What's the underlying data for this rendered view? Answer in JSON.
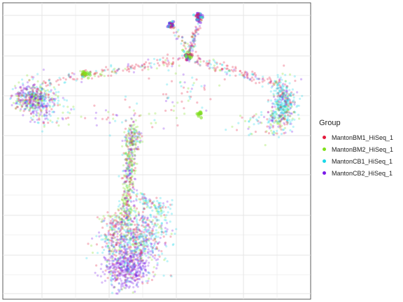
{
  "chart_data": {
    "type": "scatter",
    "title": "",
    "xlabel": "",
    "ylabel": "",
    "grid": true,
    "legend_position": "right",
    "legend": {
      "title": "Group",
      "entries": [
        {
          "name": "MantonBM1_HiSeq_1",
          "color": "#e31a3c"
        },
        {
          "name": "MantonBM2_HiSeq_1",
          "color": "#7fe01a"
        },
        {
          "name": "MantonCB1_HiSeq_1",
          "color": "#1ad8e8"
        },
        {
          "name": "MantonCB2_HiSeq_1",
          "color": "#7a1ae8"
        }
      ]
    },
    "series": [
      {
        "name": "MantonBM1_HiSeq_1",
        "color": "#e31a3c"
      },
      {
        "name": "MantonBM2_HiSeq_1",
        "color": "#7fe01a"
      },
      {
        "name": "MantonCB1_HiSeq_1",
        "color": "#1ad8e8"
      },
      {
        "name": "MantonCB2_HiSeq_1",
        "color": "#7a1ae8"
      }
    ]
  }
}
